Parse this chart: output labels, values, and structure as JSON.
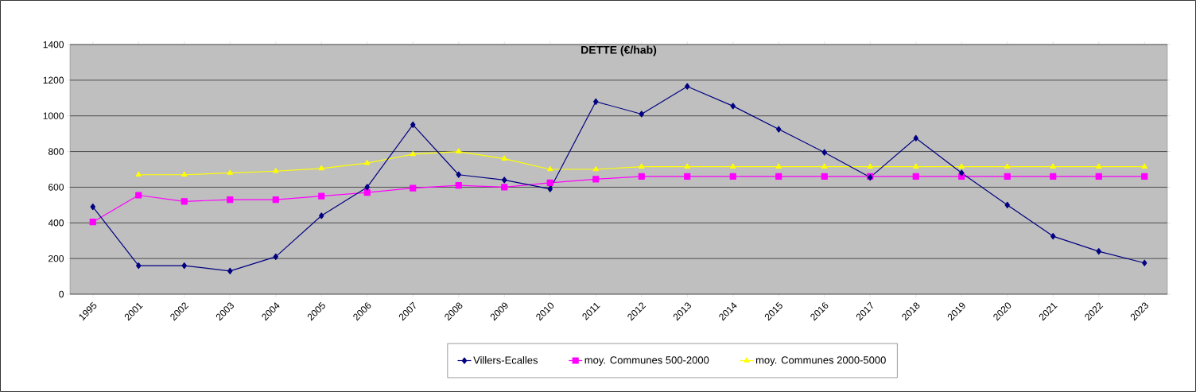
{
  "chart_data": {
    "type": "line",
    "title": "DETTE (€/hab)",
    "categories": [
      "1995",
      "2001",
      "2002",
      "2003",
      "2004",
      "2005",
      "2006",
      "2007",
      "2008",
      "2009",
      "2010",
      "2011",
      "2012",
      "2013",
      "2014",
      "2015",
      "2016",
      "2017",
      "2018",
      "2019",
      "2020",
      "2021",
      "2022",
      "2023"
    ],
    "series": [
      {
        "name": "Villers-Ecalles",
        "color": "#000080",
        "marker": "diamond",
        "values": [
          490,
          160,
          160,
          130,
          210,
          440,
          600,
          950,
          670,
          640,
          590,
          1080,
          1010,
          1165,
          1055,
          925,
          795,
          655,
          875,
          680,
          500,
          325,
          240,
          175
        ]
      },
      {
        "name": "moy. Communes 500-2000",
        "color": "#ff00ff",
        "marker": "square",
        "values": [
          405,
          555,
          520,
          530,
          530,
          550,
          570,
          595,
          610,
          600,
          625,
          645,
          660,
          660,
          660,
          660,
          660,
          660,
          660,
          660,
          660,
          660,
          660,
          660
        ]
      },
      {
        "name": "moy. Communes 2000-5000",
        "color": "#ffff00",
        "marker": "triangle",
        "values": [
          null,
          670,
          670,
          680,
          690,
          705,
          735,
          785,
          800,
          760,
          700,
          700,
          715,
          715,
          715,
          715,
          715,
          715,
          715,
          715,
          715,
          715,
          715,
          715
        ]
      }
    ],
    "ylim": [
      0,
      1400
    ],
    "yticks": [
      0,
      200,
      400,
      600,
      800,
      1000,
      1200,
      1400
    ],
    "grid": "y",
    "legend": "bottom",
    "line_style": "solid"
  }
}
